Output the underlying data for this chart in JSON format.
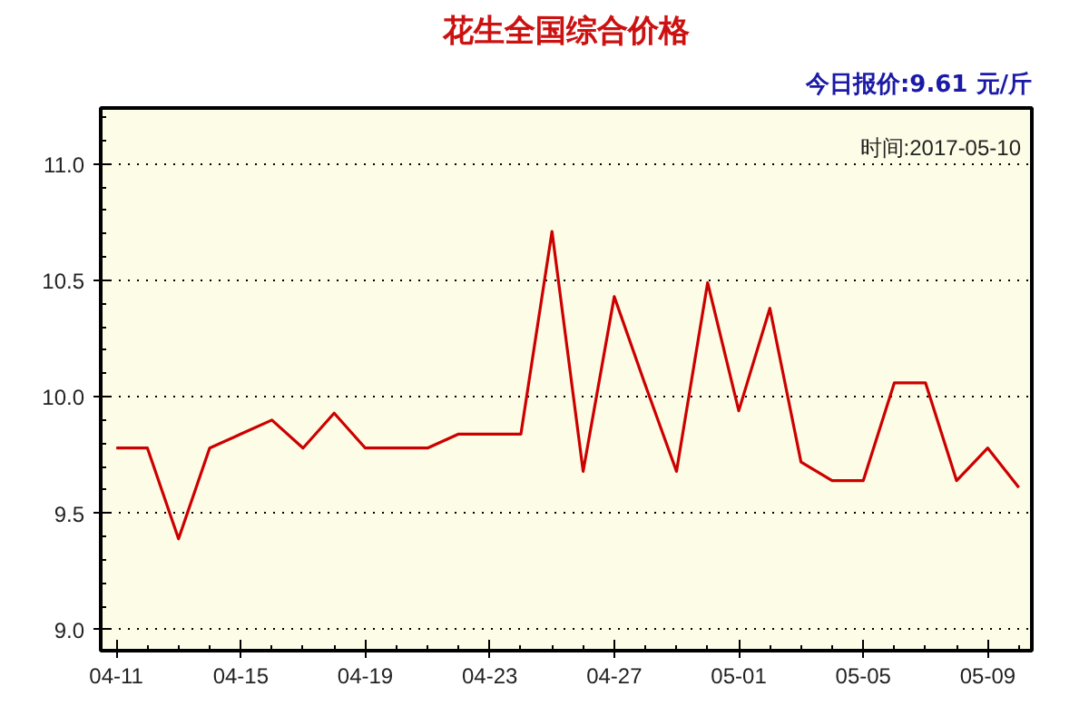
{
  "chart_data": {
    "type": "line",
    "title": "花生全国综合价格",
    "annotations": [
      "今日报价:9.61 元/斤",
      "时间:2017-05-10"
    ],
    "x": [
      "2017-04-11",
      "2017-04-12",
      "2017-04-13",
      "2017-04-14",
      "2017-04-15",
      "2017-04-16",
      "2017-04-17",
      "2017-04-18",
      "2017-04-19",
      "2017-04-20",
      "2017-04-21",
      "2017-04-22",
      "2017-04-23",
      "2017-04-24",
      "2017-04-25",
      "2017-04-26",
      "2017-04-27",
      "2017-04-28",
      "2017-04-29",
      "2017-04-30",
      "2017-05-01",
      "2017-05-02",
      "2017-05-03",
      "2017-05-04",
      "2017-05-05",
      "2017-05-06",
      "2017-05-07",
      "2017-05-08",
      "2017-05-09",
      "2017-05-10"
    ],
    "series": [
      {
        "color": "#cc0000",
        "values": [
          9.78,
          9.78,
          9.39,
          9.78,
          9.84,
          9.9,
          9.78,
          9.93,
          9.78,
          9.78,
          9.78,
          9.84,
          9.84,
          9.84,
          10.71,
          9.68,
          10.43,
          10.05,
          9.68,
          10.49,
          9.94,
          10.38,
          9.72,
          9.64,
          9.64,
          10.06,
          10.06,
          9.64,
          9.78,
          9.61
        ]
      }
    ],
    "xlim": [
      "2017-04-10T12:00",
      "2017-05-10T10:00"
    ],
    "xticks": [
      {
        "value": "2017-04-11",
        "label": "04-11"
      },
      {
        "value": "2017-04-15",
        "label": "04-15"
      },
      {
        "value": "2017-04-19",
        "label": "04-19"
      },
      {
        "value": "2017-04-23",
        "label": "04-23"
      },
      {
        "value": "2017-04-27",
        "label": "04-27"
      },
      {
        "value": "2017-05-01",
        "label": "05-01"
      },
      {
        "value": "2017-05-05",
        "label": "05-05"
      },
      {
        "value": "2017-05-09",
        "label": "05-09"
      }
    ],
    "ylim": [
      8.91,
      11.24
    ],
    "yticks": [
      {
        "value": 9.0,
        "label": "9.0"
      },
      {
        "value": 9.5,
        "label": "9.5"
      },
      {
        "value": 10.0,
        "label": "10.0"
      },
      {
        "value": 10.5,
        "label": "10.5"
      },
      {
        "value": 11.0,
        "label": "11.0"
      }
    ],
    "grid": "y",
    "marker": "none",
    "line_style": "solid"
  }
}
